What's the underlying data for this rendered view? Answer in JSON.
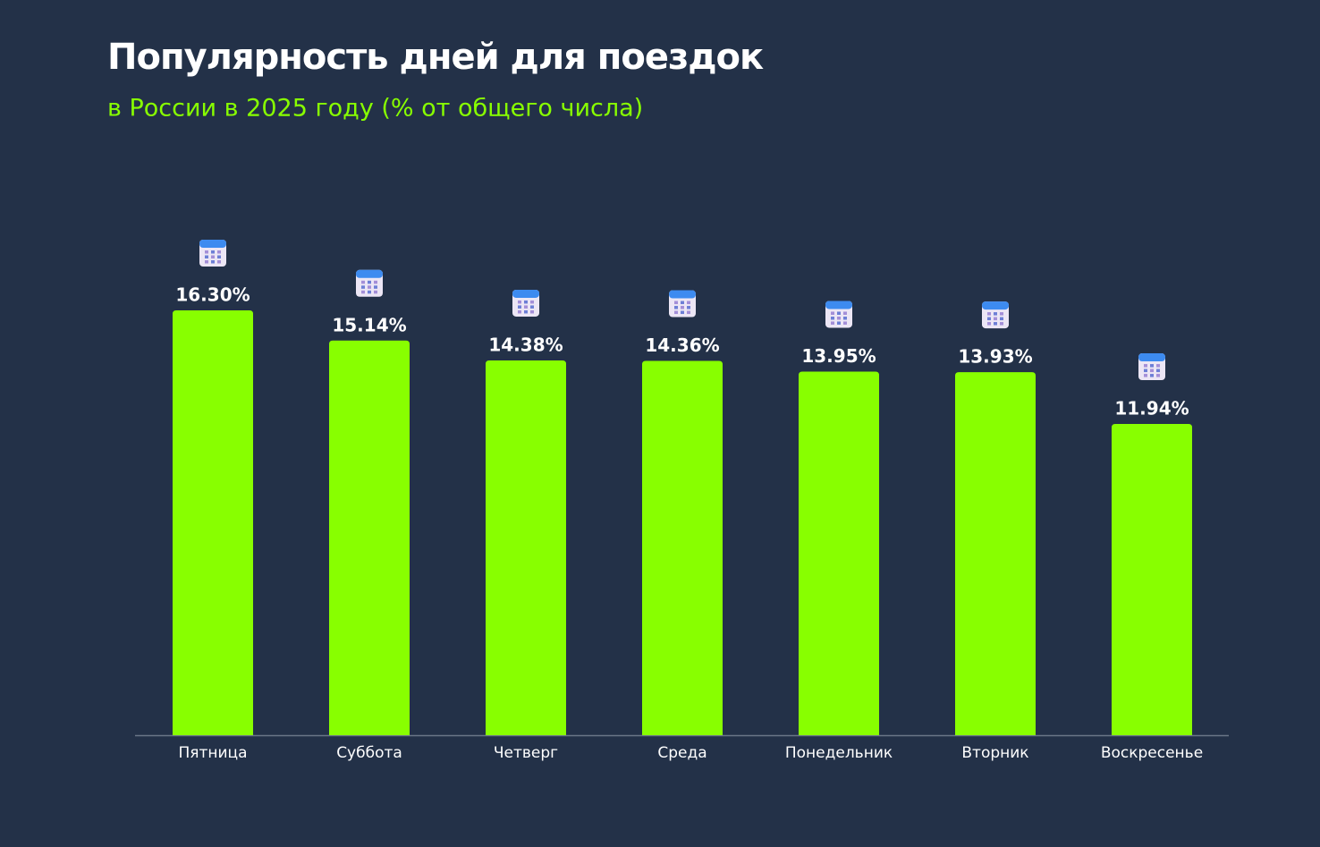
{
  "chart_data": {
    "type": "bar",
    "title": "Популярность дней для поездок",
    "subtitle": "в России в 2025 году (% от общего числа)",
    "categories": [
      "Пятница",
      "Суббота",
      "Четверг",
      "Среда",
      "Понедельник",
      "Вторник",
      "Воскресенье"
    ],
    "values": [
      16.3,
      15.14,
      14.38,
      14.36,
      13.95,
      13.93,
      11.94
    ],
    "value_labels": [
      "16.30%",
      "15.14%",
      "14.38%",
      "14.36%",
      "13.95%",
      "13.93%",
      "11.94%"
    ],
    "color": "#88ff00"
  }
}
